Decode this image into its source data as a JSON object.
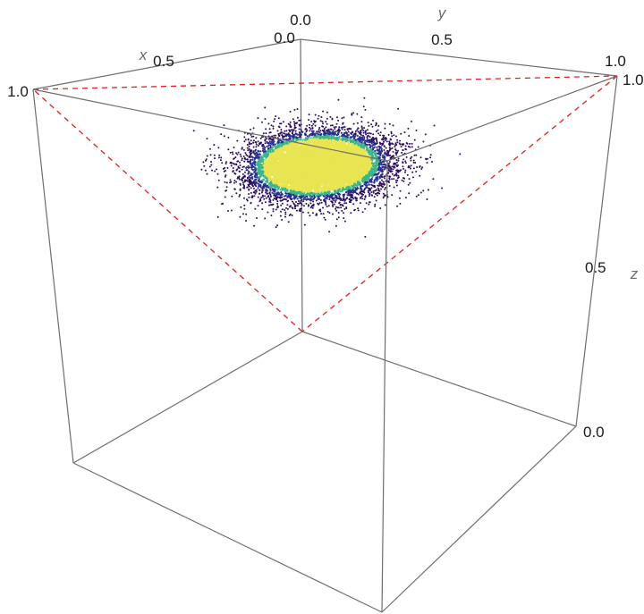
{
  "chart_data": {
    "type": "scatter",
    "title": "",
    "axes": {
      "x": {
        "label": "x",
        "range": [
          0,
          1
        ],
        "ticks": [
          "0.0",
          "0.5",
          "1.0"
        ]
      },
      "y": {
        "label": "y",
        "range": [
          0,
          1
        ],
        "ticks": [
          "0.0",
          "0.5",
          "1.0"
        ]
      },
      "z": {
        "label": "z",
        "range": [
          0,
          1
        ],
        "ticks": [
          "0.0",
          "0.5"
        ]
      }
    },
    "simplex_triangle": {
      "vertices": [
        [
          1,
          0,
          0
        ],
        [
          0,
          1,
          0
        ],
        [
          0,
          0,
          1
        ]
      ],
      "style": "dashed",
      "color": "#e01f1f"
    },
    "point_cloud": {
      "description_of_distribution": "points concentrated near centroid of simplex",
      "center": [
        0.333,
        0.333,
        0.333
      ],
      "approx_count": 9000,
      "density_colors": {
        "core": "#e8e552",
        "mid": "#3db58c",
        "edge": "#2a2f8e",
        "outer": "#2b0f5e"
      }
    },
    "grid": false,
    "legend": "none"
  }
}
